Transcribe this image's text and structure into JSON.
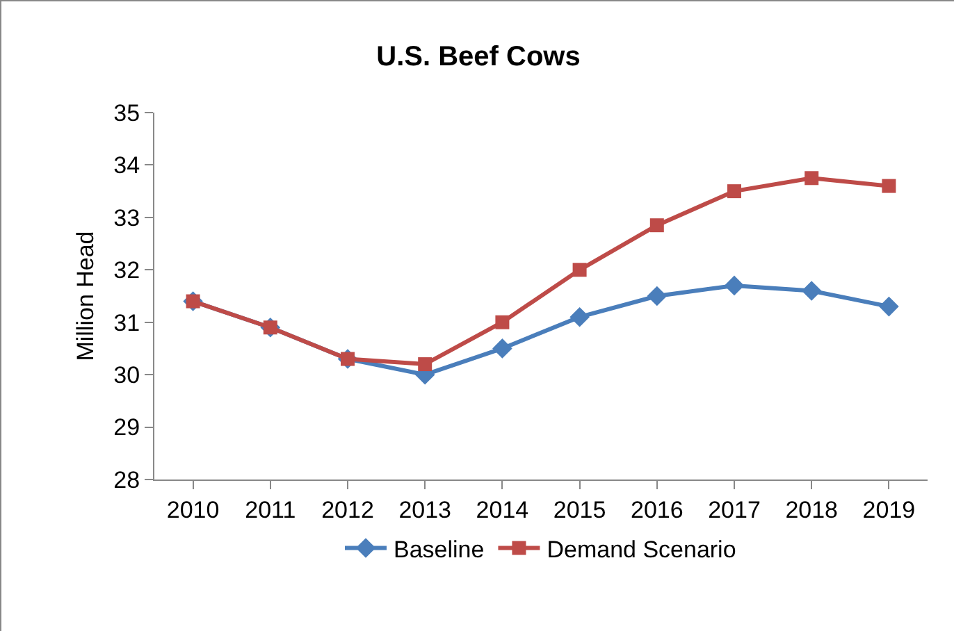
{
  "chart_data": {
    "type": "line",
    "title": "U.S. Beef Cows",
    "ylabel": "Million Head",
    "categories": [
      "2010",
      "2011",
      "2012",
      "2013",
      "2014",
      "2015",
      "2016",
      "2017",
      "2018",
      "2019"
    ],
    "series": [
      {
        "name": "Baseline",
        "color": "#4a7ebb",
        "marker": "diamond",
        "values": [
          31.4,
          30.9,
          30.3,
          30.0,
          30.5,
          31.1,
          31.5,
          31.7,
          31.6,
          31.3
        ]
      },
      {
        "name": "Demand Scenario",
        "color": "#be4b48",
        "marker": "square",
        "values": [
          31.4,
          30.9,
          30.3,
          30.2,
          31.0,
          32.0,
          32.85,
          33.5,
          33.75,
          33.6
        ]
      }
    ],
    "ylim": [
      28,
      35
    ],
    "yticks": [
      28,
      29,
      30,
      31,
      32,
      33,
      34,
      35
    ],
    "grid": false,
    "legend": "bottom"
  }
}
